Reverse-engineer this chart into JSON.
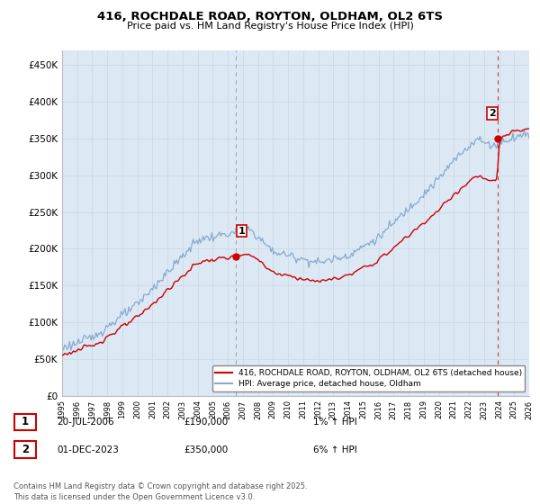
{
  "title1": "416, ROCHDALE ROAD, ROYTON, OLDHAM, OL2 6TS",
  "title2": "Price paid vs. HM Land Registry's House Price Index (HPI)",
  "ylim": [
    0,
    470000
  ],
  "yticks": [
    0,
    50000,
    100000,
    150000,
    200000,
    250000,
    300000,
    350000,
    400000,
    450000
  ],
  "ytick_labels": [
    "£0",
    "£50K",
    "£100K",
    "£150K",
    "£200K",
    "£250K",
    "£300K",
    "£350K",
    "£400K",
    "£450K"
  ],
  "legend_line1": "416, ROCHDALE ROAD, ROYTON, OLDHAM, OL2 6TS (detached house)",
  "legend_line2": "HPI: Average price, detached house, Oldham",
  "annotation1_label": "1",
  "annotation1_date": "20-JUL-2006",
  "annotation1_price": "£190,000",
  "annotation1_hpi": "1% ↑ HPI",
  "annotation2_label": "2",
  "annotation2_date": "01-DEC-2023",
  "annotation2_price": "£350,000",
  "annotation2_hpi": "6% ↑ HPI",
  "footer": "Contains HM Land Registry data © Crown copyright and database right 2025.\nThis data is licensed under the Open Government Licence v3.0.",
  "line_color_red": "#cc0000",
  "line_color_blue": "#88aacc",
  "vline1_color": "#aaaaaa",
  "vline2_color": "#cc4444",
  "grid_color": "#ccdde8",
  "bg_color": "#e8f0f8",
  "plot_bg": "#dce8f4",
  "sale1_x": 2006.55,
  "sale1_y": 190000,
  "sale2_x": 2023.92,
  "sale2_y": 350000,
  "xlim_start": 1995,
  "xlim_end": 2026
}
